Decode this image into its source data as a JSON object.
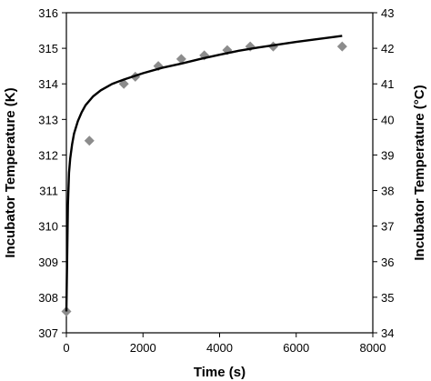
{
  "chart_data": {
    "type": "scatter",
    "title": "",
    "xlabel": "Time (s)",
    "ylabel_left": "Incubator Temperature (K)",
    "ylabel_right": "Incubator Temperature (°C)",
    "xlim": [
      0,
      8000
    ],
    "ylim_left": [
      307,
      316
    ],
    "ylim_right": [
      34,
      43
    ],
    "xticks": [
      "0",
      "2000",
      "4000",
      "6000",
      "8000"
    ],
    "yticks_left": [
      "307",
      "308",
      "309",
      "310",
      "311",
      "312",
      "313",
      "314",
      "315",
      "316"
    ],
    "yticks_right": [
      "34",
      "35",
      "36",
      "37",
      "38",
      "39",
      "40",
      "41",
      "42",
      "43"
    ],
    "grid": false,
    "series": [
      {
        "kind": "markers",
        "marker": "diamond",
        "color": "#8c8c8c",
        "x": [
          0,
          600,
          1500,
          1800,
          2400,
          3000,
          3600,
          4200,
          4800,
          5400,
          7200
        ],
        "y": [
          307.6,
          312.4,
          314.0,
          314.2,
          314.5,
          314.7,
          314.8,
          314.95,
          315.05,
          315.05,
          315.05
        ]
      },
      {
        "kind": "line",
        "color": "#000000",
        "x": [
          0,
          20,
          40,
          70,
          100,
          150,
          200,
          300,
          400,
          500,
          700,
          900,
          1200,
          1500,
          2000,
          2500,
          3000,
          3500,
          4000,
          4500,
          5000,
          5500,
          6000,
          6500,
          7000,
          7200
        ],
        "y": [
          307.6,
          309.0,
          310.6,
          311.5,
          311.9,
          312.3,
          312.6,
          312.95,
          313.2,
          313.4,
          313.65,
          313.82,
          314.0,
          314.12,
          314.3,
          314.45,
          314.57,
          314.7,
          314.82,
          314.93,
          315.02,
          315.1,
          315.18,
          315.25,
          315.32,
          315.35
        ]
      }
    ]
  }
}
